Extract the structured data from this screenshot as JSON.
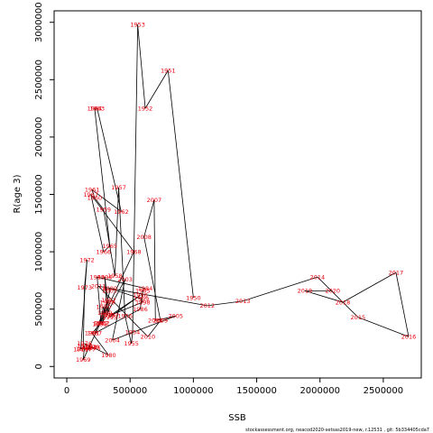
{
  "chart_data": {
    "type": "line",
    "title": "",
    "xlabel": "SSB",
    "ylabel": "R(age 3)",
    "xlim": [
      -100000,
      2800000
    ],
    "ylim": [
      -100000,
      3100000
    ],
    "x_ticks": [
      0,
      500000,
      1000000,
      1500000,
      2000000,
      2500000
    ],
    "x_tick_labels": [
      "0",
      "500000",
      "1000000",
      "1500000",
      "2000000",
      "2500000"
    ],
    "y_ticks": [
      0,
      500000,
      1000000,
      1500000,
      2000000,
      2500000,
      3000000
    ],
    "y_tick_labels": [
      "0",
      "500000",
      "1000000",
      "1500000",
      "2000000",
      "2500000",
      "3000000"
    ],
    "line_color": "#000000",
    "label_color": "#e8000b",
    "points": [
      {
        "year": "1950",
        "x": 1000000,
        "y": 600000
      },
      {
        "year": "1951",
        "x": 800000,
        "y": 2580000
      },
      {
        "year": "1952",
        "x": 620000,
        "y": 2250000
      },
      {
        "year": "1953",
        "x": 560000,
        "y": 2980000
      },
      {
        "year": "1954",
        "x": 520000,
        "y": 300000
      },
      {
        "year": "1955",
        "x": 510000,
        "y": 200000
      },
      {
        "year": "1956",
        "x": 460000,
        "y": 440000
      },
      {
        "year": "1957",
        "x": 410000,
        "y": 1560000
      },
      {
        "year": "1958",
        "x": 380000,
        "y": 790000
      },
      {
        "year": "1959",
        "x": 290000,
        "y": 1370000
      },
      {
        "year": "1960",
        "x": 220000,
        "y": 1470000
      },
      {
        "year": "1961",
        "x": 200000,
        "y": 1540000
      },
      {
        "year": "1962",
        "x": 430000,
        "y": 1350000
      },
      {
        "year": "1963",
        "x": 240000,
        "y": 2250000
      },
      {
        "year": "1964",
        "x": 220000,
        "y": 2250000
      },
      {
        "year": "1965",
        "x": 340000,
        "y": 1050000
      },
      {
        "year": "1966",
        "x": 290000,
        "y": 1000000
      },
      {
        "year": "1967",
        "x": 190000,
        "y": 1500000
      },
      {
        "year": "1968",
        "x": 530000,
        "y": 1000000
      },
      {
        "year": "1969",
        "x": 130000,
        "y": 60000
      },
      {
        "year": "1970",
        "x": 140000,
        "y": 180000
      },
      {
        "year": "1971",
        "x": 110000,
        "y": 150000
      },
      {
        "year": "1972",
        "x": 160000,
        "y": 930000
      },
      {
        "year": "1973",
        "x": 140000,
        "y": 690000
      },
      {
        "year": "1974",
        "x": 130000,
        "y": 155000
      },
      {
        "year": "1975",
        "x": 210000,
        "y": 160000
      },
      {
        "year": "1976",
        "x": 140000,
        "y": 200000
      },
      {
        "year": "1977",
        "x": 170000,
        "y": 150000
      },
      {
        "year": "1978",
        "x": 180000,
        "y": 170000
      },
      {
        "year": "1979",
        "x": 200000,
        "y": 170000
      },
      {
        "year": "1980",
        "x": 330000,
        "y": 100000
      },
      {
        "year": "1981",
        "x": 200000,
        "y": 290000
      },
      {
        "year": "1982",
        "x": 270000,
        "y": 380000
      },
      {
        "year": "1983",
        "x": 240000,
        "y": 780000
      },
      {
        "year": "1984",
        "x": 620000,
        "y": 680000
      },
      {
        "year": "1985",
        "x": 600000,
        "y": 660000
      },
      {
        "year": "1986",
        "x": 580000,
        "y": 500000
      },
      {
        "year": "1987",
        "x": 220000,
        "y": 290000
      },
      {
        "year": "1988",
        "x": 320000,
        "y": 560000
      },
      {
        "year": "1989",
        "x": 300000,
        "y": 470000
      },
      {
        "year": "1990",
        "x": 290000,
        "y": 520000
      },
      {
        "year": "1991",
        "x": 260000,
        "y": 370000
      },
      {
        "year": "1992",
        "x": 330000,
        "y": 580000
      },
      {
        "year": "1993",
        "x": 320000,
        "y": 450000
      },
      {
        "year": "1994",
        "x": 300000,
        "y": 780000
      },
      {
        "year": "1995",
        "x": 340000,
        "y": 430000
      },
      {
        "year": "1996",
        "x": 580000,
        "y": 620000
      },
      {
        "year": "1997",
        "x": 350000,
        "y": 450000
      },
      {
        "year": "1998",
        "x": 600000,
        "y": 560000
      },
      {
        "year": "1999",
        "x": 590000,
        "y": 590000
      },
      {
        "year": "2000",
        "x": 340000,
        "y": 680000
      },
      {
        "year": "2001",
        "x": 340000,
        "y": 660000
      },
      {
        "year": "2002",
        "x": 280000,
        "y": 380000
      },
      {
        "year": "2003",
        "x": 460000,
        "y": 760000
      },
      {
        "year": "2004",
        "x": 360000,
        "y": 230000
      },
      {
        "year": "2005",
        "x": 860000,
        "y": 440000
      },
      {
        "year": "2006",
        "x": 700000,
        "y": 400000
      },
      {
        "year": "2007",
        "x": 690000,
        "y": 1450000
      },
      {
        "year": "2008",
        "x": 610000,
        "y": 1130000
      },
      {
        "year": "2009",
        "x": 740000,
        "y": 400000
      },
      {
        "year": "2010",
        "x": 640000,
        "y": 260000
      },
      {
        "year": "2011",
        "x": 250000,
        "y": 700000
      },
      {
        "year": "2012",
        "x": 1110000,
        "y": 530000
      },
      {
        "year": "2013",
        "x": 1390000,
        "y": 570000
      },
      {
        "year": "2014",
        "x": 1980000,
        "y": 780000
      },
      {
        "year": "2015",
        "x": 2300000,
        "y": 430000
      },
      {
        "year": "2016",
        "x": 2700000,
        "y": 260000
      },
      {
        "year": "2017",
        "x": 2600000,
        "y": 820000
      },
      {
        "year": "2018",
        "x": 2180000,
        "y": 560000
      },
      {
        "year": "2019",
        "x": 1880000,
        "y": 660000
      },
      {
        "year": "2020",
        "x": 2100000,
        "y": 660000
      }
    ]
  },
  "footer": {
    "text": "stockassessment.org,  neacod2020-setsas2019-new,  r.12531  ,  git:  5b334405cda7"
  }
}
